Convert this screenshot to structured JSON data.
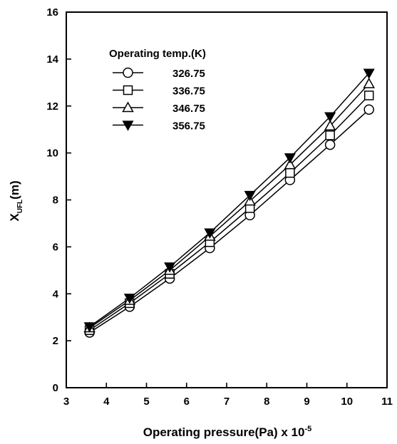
{
  "chart_data": {
    "type": "line",
    "xlabel": "Operating pressure(Pa) x 10",
    "xlabel_exponent": "-5",
    "ylabel_main": "X",
    "ylabel_sub": "UFL",
    "ylabel_suffix": "(m)",
    "xlim": [
      3,
      11
    ],
    "ylim": [
      0,
      16
    ],
    "xticks": [
      "3",
      "4",
      "5",
      "6",
      "7",
      "8",
      "9",
      "10",
      "11"
    ],
    "yticks": [
      "0",
      "2",
      "4",
      "6",
      "8",
      "10",
      "12",
      "14",
      "16"
    ],
    "legend_title": "Operating temp.(K)",
    "legend_position": "top-left",
    "grid": false,
    "x": [
      3.58,
      4.58,
      5.58,
      6.58,
      7.58,
      8.58,
      9.58,
      10.55
    ],
    "series": [
      {
        "name": "326.75",
        "marker": "circle-open",
        "values": [
          2.35,
          3.45,
          4.65,
          5.95,
          7.35,
          8.85,
          10.35,
          11.85
        ]
      },
      {
        "name": "336.75",
        "marker": "square-open",
        "values": [
          2.45,
          3.6,
          4.85,
          6.2,
          7.65,
          9.15,
          10.75,
          12.45
        ]
      },
      {
        "name": "346.75",
        "marker": "triangle-up-open",
        "values": [
          2.55,
          3.72,
          5.0,
          6.45,
          7.95,
          9.5,
          11.15,
          12.95
        ]
      },
      {
        "name": "356.75",
        "marker": "triangle-down-filled",
        "values": [
          2.6,
          3.82,
          5.15,
          6.6,
          8.2,
          9.8,
          11.55,
          13.4
        ]
      }
    ]
  }
}
